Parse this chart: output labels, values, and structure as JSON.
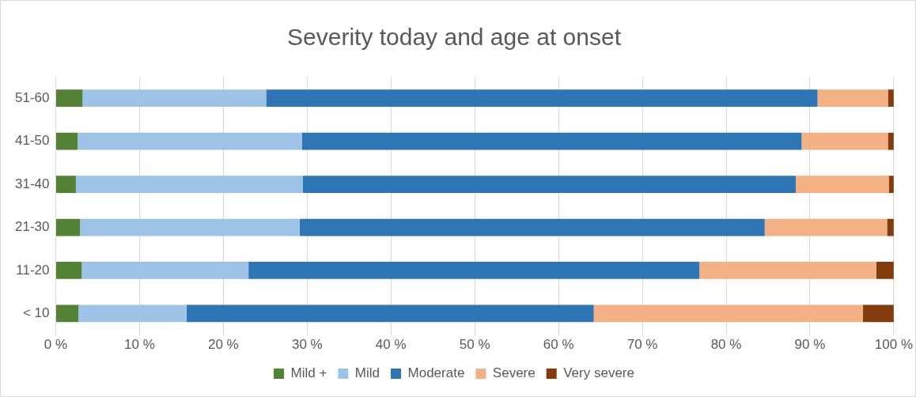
{
  "chart_data": {
    "type": "bar",
    "title": "Severity today and age at onset",
    "orientation": "horizontal",
    "stacked": true,
    "categories": [
      "51-60",
      "41-50",
      "31-40",
      "21-30",
      "11-20",
      "< 10"
    ],
    "series": [
      {
        "name": "Mild +",
        "color": "#548235",
        "values": [
          3.2,
          2.6,
          2.4,
          2.9,
          3.1,
          2.7
        ]
      },
      {
        "name": "Mild",
        "color": "#9dc3e6",
        "values": [
          21.9,
          26.8,
          27.1,
          26.2,
          19.9,
          12.9
        ]
      },
      {
        "name": "Moderate",
        "color": "#2e75b6",
        "values": [
          65.8,
          59.6,
          58.8,
          55.5,
          53.8,
          48.6
        ]
      },
      {
        "name": "Severe",
        "color": "#f4b183",
        "values": [
          8.4,
          10.3,
          11.1,
          14.6,
          21.1,
          32.1
        ]
      },
      {
        "name": "Very severe",
        "color": "#843c0c",
        "values": [
          0.7,
          0.7,
          0.6,
          0.8,
          2.1,
          3.7
        ]
      }
    ],
    "xlim": [
      0,
      100
    ],
    "xticks": [
      {
        "value": 0,
        "label": "0 %"
      },
      {
        "value": 10,
        "label": "10 %"
      },
      {
        "value": 20,
        "label": "20 %"
      },
      {
        "value": 30,
        "label": "30 %"
      },
      {
        "value": 40,
        "label": "40 %"
      },
      {
        "value": 50,
        "label": "50 %"
      },
      {
        "value": 60,
        "label": "60 %"
      },
      {
        "value": 70,
        "label": "70 %"
      },
      {
        "value": 80,
        "label": "80 %"
      },
      {
        "value": 90,
        "label": "90 %"
      },
      {
        "value": 100,
        "label": "100 %"
      }
    ],
    "grid": "x",
    "legend": "bottom"
  }
}
